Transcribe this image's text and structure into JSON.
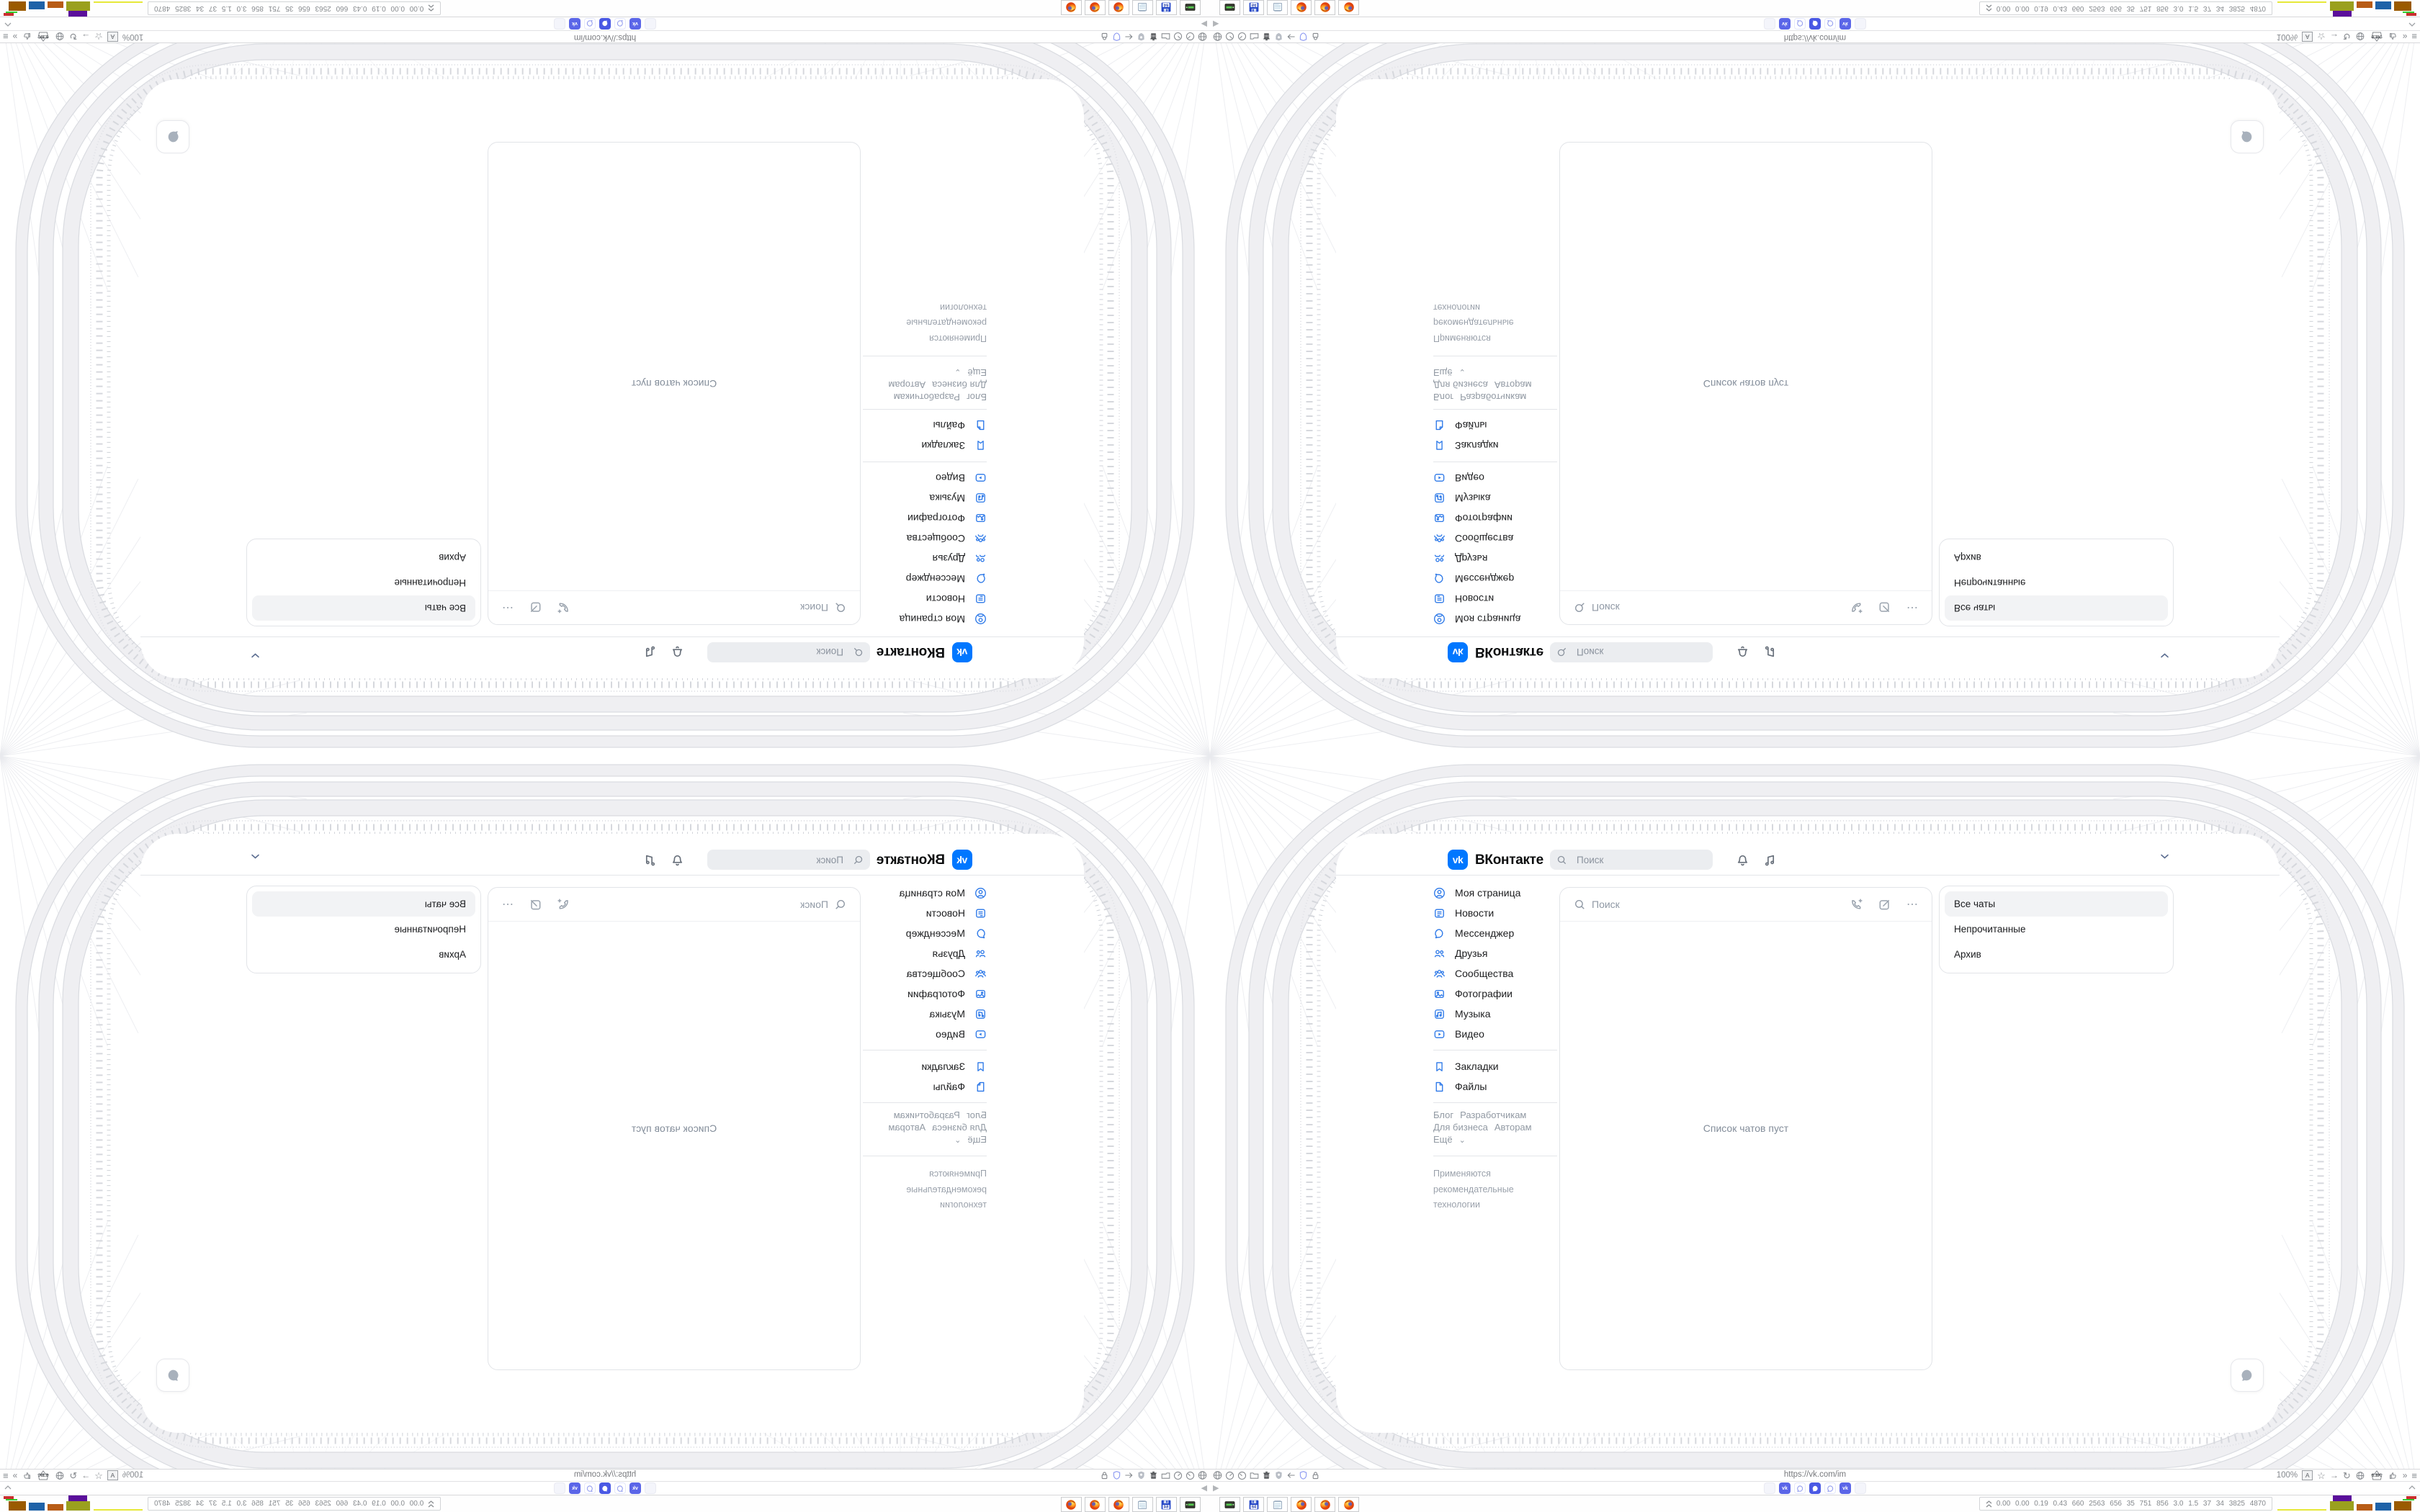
{
  "vk": {
    "logo_text": "vk",
    "brand": "ВКонтакте",
    "header_search_placeholder": "Поиск",
    "sidebar": {
      "items": [
        {
          "label": "Моя страница"
        },
        {
          "label": "Новости"
        },
        {
          "label": "Мессенджер"
        },
        {
          "label": "Друзья"
        },
        {
          "label": "Сообщества"
        },
        {
          "label": "Фотографии"
        },
        {
          "label": "Музыка"
        },
        {
          "label": "Видео"
        },
        {
          "label": "Закладки"
        },
        {
          "label": "Файлы"
        }
      ],
      "links": [
        "Блог",
        "Разработчикам",
        "Для бизнеса",
        "Авторам",
        "Ещё"
      ],
      "footer": "Применяются рекомендательные технологии"
    },
    "messenger": {
      "search_placeholder": "Поиск",
      "empty_text": "Список чатов пуст"
    },
    "filters": [
      "Все чаты",
      "Непрочитанные",
      "Архив"
    ]
  },
  "browser": {
    "status_url": "https://vk.com/im",
    "zoom_level": "100%",
    "blocker_count": "6.8K",
    "translate_label": "A"
  },
  "taskbar": {
    "monitor_values": "0.00 0.00 0.19 0.43 660 2563 656 35 751 856 3.0 1.5 37 34 3825 4870",
    "floppy_label": "64"
  },
  "icons": {
    "star": "☆",
    "arrow_right": "→",
    "reload": "↻",
    "overflow": "»",
    "menu": "≡",
    "dots": "⋯",
    "play": "▶"
  },
  "colors": {
    "vk_blue": "#0077ff",
    "nav_icon_blue": "#2a77e8",
    "tab_active_blue": "#4a59e4"
  }
}
